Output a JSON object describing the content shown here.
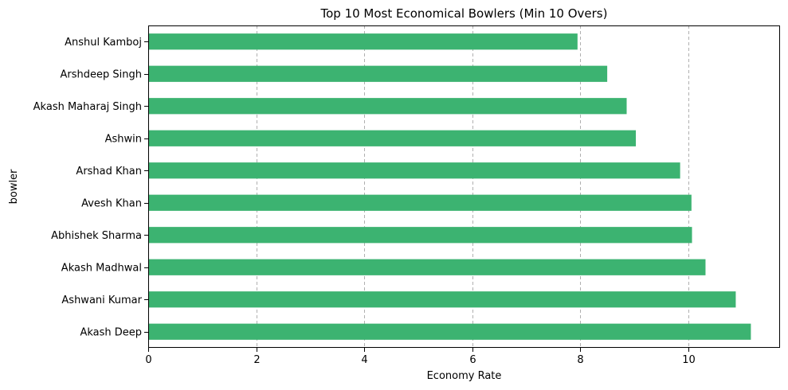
{
  "chart_data": {
    "type": "bar",
    "orientation": "horizontal",
    "title": "Top 10 Most Economical Bowlers (Min 10 Overs)",
    "xlabel": "Economy Rate",
    "ylabel": "bowler",
    "categories": [
      "Anshul Kamboj",
      "Arshdeep Singh",
      "Akash Maharaj Singh",
      "Ashwin",
      "Arshad Khan",
      "Avesh Khan",
      "Abhishek Sharma",
      "Akash Madhwal",
      "Ashwani Kumar",
      "Akash Deep"
    ],
    "values": [
      7.95,
      8.5,
      8.86,
      9.03,
      9.85,
      10.06,
      10.07,
      10.32,
      10.88,
      11.16
    ],
    "xlim": [
      0,
      11.7
    ],
    "xticks": [
      0,
      2,
      4,
      6,
      8,
      10
    ],
    "bar_color": "#3cb371",
    "grid": {
      "x": true,
      "y": false,
      "style": "dashed"
    },
    "legend": "none"
  }
}
